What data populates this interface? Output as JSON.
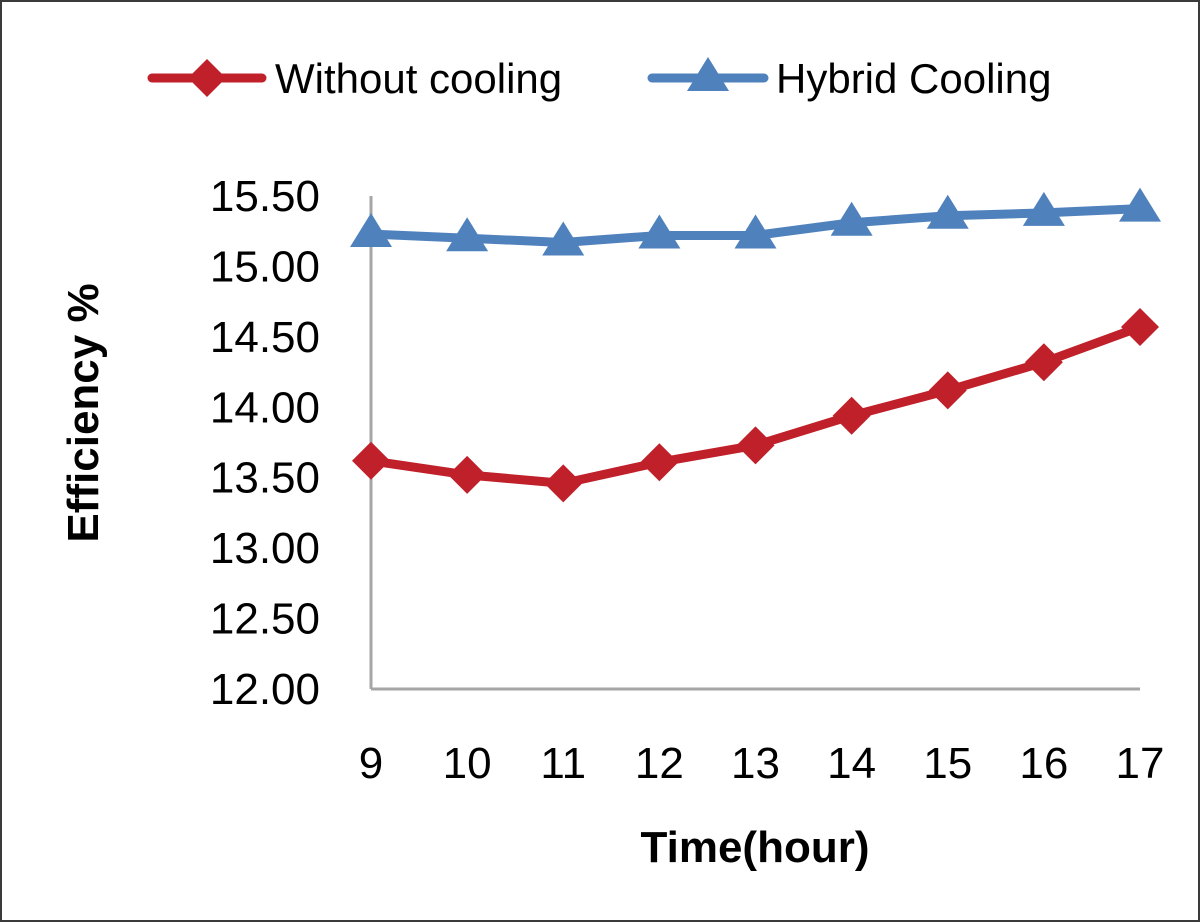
{
  "chart_data": {
    "type": "line",
    "x": [
      9,
      10,
      11,
      12,
      13,
      14,
      15,
      16,
      17
    ],
    "series": [
      {
        "name": "Without cooling",
        "color": "#c0202a",
        "marker": "diamond",
        "values": [
          13.62,
          13.52,
          13.46,
          13.61,
          13.73,
          13.94,
          14.12,
          14.32,
          14.57
        ]
      },
      {
        "name": "Hybrid Cooling",
        "color": "#4f81bd",
        "marker": "triangle",
        "values": [
          15.23,
          15.2,
          15.17,
          15.22,
          15.22,
          15.31,
          15.36,
          15.38,
          15.41
        ]
      }
    ],
    "xlabel": "Time(hour)",
    "ylabel": "Efficiency %",
    "ylim": [
      12.0,
      15.5
    ],
    "y_ticks": [
      "12.00",
      "12.50",
      "13.00",
      "13.50",
      "14.00",
      "14.50",
      "15.00",
      "15.50"
    ],
    "legend_position": "top",
    "grid": false
  }
}
